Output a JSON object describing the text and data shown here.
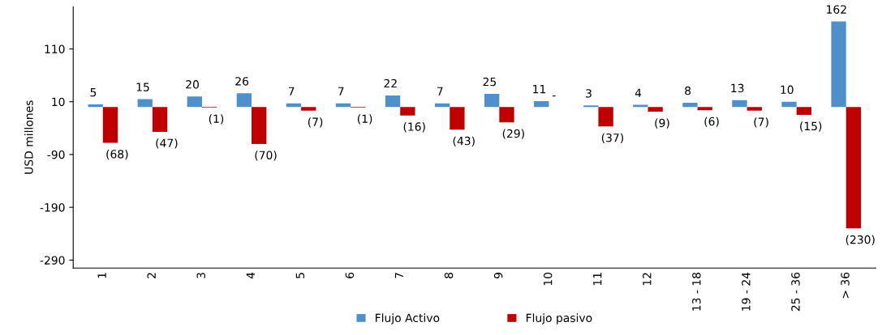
{
  "chart_data": {
    "type": "bar",
    "ylabel": "USD millones",
    "categories": [
      "1",
      "2",
      "3",
      "4",
      "5",
      "6",
      "7",
      "8",
      "9",
      "10",
      "11",
      "12",
      "13 - 18",
      "19 - 24",
      "25 - 36",
      "> 36"
    ],
    "series": [
      {
        "name": "Flujo Activo",
        "color": "#4f8fcc",
        "values": [
          5,
          15,
          20,
          26,
          7,
          7,
          22,
          7,
          25,
          11,
          3,
          4,
          8,
          13,
          10,
          162
        ],
        "value_labels": [
          "5",
          "15",
          "20",
          "26",
          "7",
          "7",
          "22",
          "7",
          "25",
          "11",
          "3",
          "4",
          "8",
          "13",
          "10",
          "162"
        ]
      },
      {
        "name": "Flujo pasivo",
        "color": "#c00000",
        "values": [
          -68,
          -47,
          -1,
          -70,
          -7,
          -1,
          -16,
          -43,
          -29,
          0,
          -37,
          -9,
          -6,
          -7,
          -15,
          -230
        ],
        "value_labels": [
          "(68)",
          "(47)",
          "(1)",
          "(70)",
          "(7)",
          "(1)",
          "(16)",
          "(43)",
          "(29)",
          "-",
          "(37)",
          "(9)",
          "(6)",
          "(7)",
          "(15)",
          "(230)"
        ]
      }
    ],
    "ylim": [
      -305,
      190
    ],
    "yticks": [
      -290,
      -190,
      -90,
      10,
      110
    ],
    "grid": false,
    "legend": "bottom"
  }
}
